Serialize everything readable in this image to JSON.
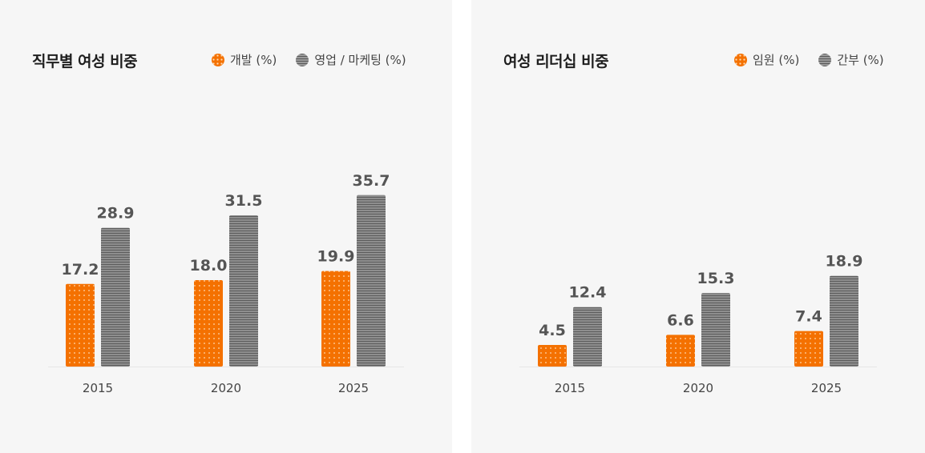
{
  "colors": {
    "dev": "#f47100",
    "sales": "#7a7a7a",
    "panel": "#f6f6f6",
    "label": "#555555"
  },
  "chart_data": [
    {
      "type": "bar",
      "title": "직무별 여성 비중",
      "categories": [
        "2015",
        "2020",
        "2025"
      ],
      "series": [
        {
          "name": "개발 (%)",
          "values": [
            17.2,
            18.0,
            19.9
          ]
        },
        {
          "name": "영업 / 마케팅 (%)",
          "values": [
            28.9,
            31.5,
            35.7
          ]
        }
      ],
      "value_labels": [
        [
          "17.2",
          "18.0",
          "19.9"
        ],
        [
          "28.9",
          "31.5",
          "35.7"
        ]
      ],
      "ylim": [
        0,
        40
      ],
      "legend": "top-right",
      "grid": false
    },
    {
      "type": "bar",
      "title": "여성 리더십 비중",
      "categories": [
        "2015",
        "2020",
        "2025"
      ],
      "series": [
        {
          "name": "임원 (%)",
          "values": [
            4.5,
            6.6,
            7.4
          ]
        },
        {
          "name": "간부 (%)",
          "values": [
            12.4,
            15.3,
            18.9
          ]
        }
      ],
      "value_labels": [
        [
          "4.5",
          "6.6",
          "7.4"
        ],
        [
          "12.4",
          "15.3",
          "18.9"
        ]
      ],
      "ylim": [
        0,
        40
      ],
      "legend": "top-right",
      "grid": false
    }
  ]
}
